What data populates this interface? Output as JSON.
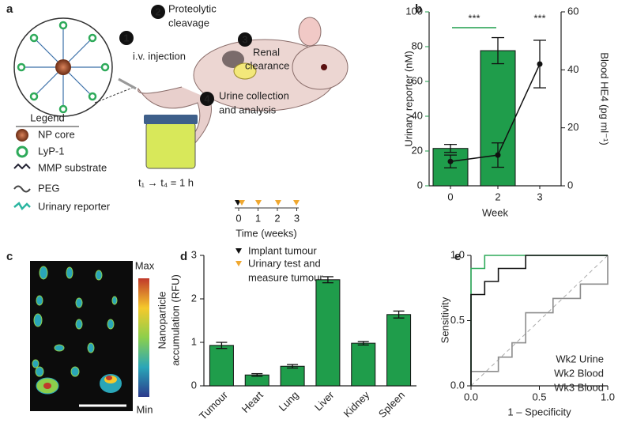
{
  "panels": [
    "a",
    "b",
    "c",
    "d",
    "e"
  ],
  "diagram": {
    "steps": [
      {
        "number": "1",
        "label": [
          "i.v. injection"
        ]
      },
      {
        "number": "2",
        "label": [
          "Proteolytic",
          "cleavage"
        ]
      },
      {
        "number": "3",
        "label": [
          "Renal",
          "clearance"
        ]
      },
      {
        "number": "4",
        "label": [
          "Urine collection",
          "and analysis"
        ]
      }
    ],
    "legend": {
      "title": "Legend",
      "items": [
        "NP core",
        "LyP-1",
        "MMP substrate",
        "PEG",
        "Urinary reporter"
      ]
    },
    "timing": "t₁ → t₄ = 1 h",
    "timeline": {
      "ticks": [
        0,
        1,
        2,
        3
      ],
      "label": "Time (weeks)",
      "legend": [
        [
          "Implant tumour"
        ],
        [
          "Urinary test and",
          "measure tumour"
        ]
      ]
    }
  },
  "image": {
    "colorbar": [
      "Max",
      "Min"
    ]
  },
  "chart_data": [
    {
      "type": "bar-line",
      "xlabel": "Week",
      "ylabel": "Urinary reporter (nM)",
      "y2label": "Blood HE4 (pg ml⁻¹)",
      "categories": [
        "0",
        "2",
        "3"
      ],
      "series": [
        {
          "type": "bar",
          "color": "#1f9d4b",
          "values": [
            21.5,
            77.7,
            null
          ],
          "errors": [
            2.3,
            7.5,
            null
          ]
        },
        {
          "type": "line",
          "axis": "y2",
          "color": "#111111",
          "values": [
            8.4,
            10.6,
            42
          ],
          "errors": [
            2.2,
            4.2,
            8.2
          ]
        }
      ],
      "ylim": [
        0,
        100
      ],
      "yticks": [
        0,
        20,
        40,
        60,
        80,
        100
      ],
      "y2lim": [
        0,
        60
      ],
      "y2ticks": [
        0,
        20,
        40,
        60
      ],
      "annotations": [
        {
          "text": "***",
          "color": "#1f9d4b"
        },
        {
          "text": "***",
          "color": "#111111"
        }
      ]
    },
    {
      "type": "bar",
      "ylabel": [
        "Nanoparticle",
        "accumulation (RFU)"
      ],
      "categories": [
        "Tumour",
        "Heart",
        "Lung",
        "Liver",
        "Kidney",
        "Spleen"
      ],
      "values": [
        0.93,
        0.25,
        0.45,
        2.44,
        0.98,
        1.64
      ],
      "errors": [
        0.07,
        0.03,
        0.04,
        0.07,
        0.04,
        0.08
      ],
      "color": "#1f9d4b",
      "ylim": [
        0,
        3
      ],
      "yticks": [
        0,
        1,
        2,
        3
      ]
    },
    {
      "type": "line",
      "xlabel": "1 – Specificity",
      "ylabel": "Sensitivity",
      "xlim": [
        0,
        1
      ],
      "ylim": [
        0,
        1
      ],
      "xticks": [
        {
          "value": 0,
          "label": "0.0"
        },
        {
          "value": 0.5,
          "label": "0.5"
        },
        {
          "value": 1,
          "label": "1.0"
        }
      ],
      "yticks": [
        {
          "value": 0,
          "label": "0.0"
        },
        {
          "value": 0.5,
          "label": "0.5"
        },
        {
          "value": 1,
          "label": "1.0"
        }
      ],
      "series": [
        {
          "name": "Wk2 Urine",
          "color": "#2eaa5a",
          "x": [
            0,
            0,
            0.1,
            0.1,
            1
          ],
          "values": [
            0,
            0.9,
            0.9,
            1,
            1
          ]
        },
        {
          "name": "Wk2 Blood",
          "color": "#8c8c8c",
          "x": [
            0,
            0,
            0.2,
            0.2,
            0.3,
            0.3,
            0.4,
            0.4,
            0.6,
            0.6,
            0.8,
            0.8,
            1,
            1
          ],
          "values": [
            0,
            0.11,
            0.11,
            0.22,
            0.22,
            0.33,
            0.33,
            0.56,
            0.56,
            0.67,
            0.67,
            0.78,
            0.78,
            1
          ]
        },
        {
          "name": "Wk3 Blood",
          "color": "#111111",
          "x": [
            0,
            0,
            0.1,
            0.1,
            0.2,
            0.2,
            0.4,
            0.4,
            1
          ],
          "values": [
            0,
            0.7,
            0.7,
            0.8,
            0.8,
            0.9,
            0.9,
            1,
            1
          ]
        }
      ]
    }
  ]
}
